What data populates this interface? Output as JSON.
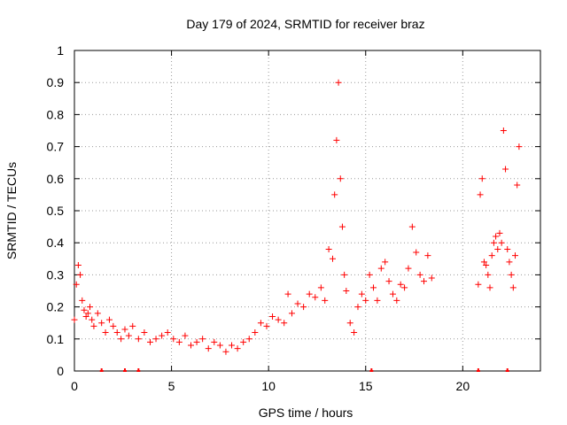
{
  "chart_data": {
    "type": "scatter",
    "title": "Day 179 of 2024, SRMTID for receiver braz",
    "xlabel": "GPS time / hours",
    "ylabel": "SRMTID / TECUs",
    "xlim": [
      0,
      24
    ],
    "ylim": [
      0,
      1
    ],
    "xticks": [
      0,
      5,
      10,
      15,
      20
    ],
    "xtick_labels": [
      "0",
      "5",
      "10",
      "15",
      "20"
    ],
    "yticks": [
      0,
      0.1,
      0.2,
      0.3,
      0.4,
      0.5,
      0.6,
      0.7,
      0.8,
      0.9,
      1
    ],
    "ytick_labels": [
      "0",
      "0.1",
      "0.2",
      "0.3",
      "0.4",
      "0.5",
      "0.6",
      "0.7",
      "0.8",
      "0.9",
      "1"
    ],
    "grid": true,
    "marker": "+",
    "color": "#ff0000",
    "series": [
      {
        "name": "SRMTID",
        "x": [
          0.0,
          0.1,
          0.2,
          0.3,
          0.4,
          0.5,
          0.6,
          0.7,
          0.8,
          0.9,
          1.0,
          1.2,
          1.4,
          1.6,
          1.8,
          2.0,
          2.2,
          2.4,
          2.6,
          2.8,
          3.0,
          3.3,
          3.6,
          3.9,
          4.2,
          4.5,
          4.8,
          5.1,
          5.4,
          5.7,
          6.0,
          6.3,
          6.6,
          6.9,
          7.2,
          7.5,
          7.8,
          8.1,
          8.4,
          8.7,
          9.0,
          9.3,
          9.6,
          9.9,
          10.2,
          10.5,
          10.8,
          11.0,
          11.2,
          11.5,
          11.8,
          12.1,
          12.4,
          12.7,
          12.9,
          13.1,
          13.3,
          13.4,
          13.5,
          13.6,
          13.7,
          13.8,
          13.9,
          14.0,
          14.2,
          14.4,
          14.6,
          14.8,
          15.0,
          15.2,
          15.4,
          15.6,
          15.8,
          16.0,
          16.2,
          16.4,
          16.6,
          16.8,
          17.0,
          17.2,
          17.4,
          17.6,
          17.8,
          18.0,
          18.2,
          18.4,
          20.8,
          20.9,
          21.0,
          21.1,
          21.2,
          21.3,
          21.4,
          21.5,
          21.6,
          21.7,
          21.8,
          21.9,
          22.0,
          22.1,
          22.2,
          22.3,
          22.4,
          22.5,
          22.6,
          22.7,
          22.8,
          22.9
        ],
        "y": [
          0.16,
          0.27,
          0.33,
          0.3,
          0.22,
          0.19,
          0.17,
          0.18,
          0.2,
          0.16,
          0.14,
          0.18,
          0.15,
          0.12,
          0.16,
          0.14,
          0.12,
          0.1,
          0.13,
          0.11,
          0.14,
          0.1,
          0.12,
          0.09,
          0.1,
          0.11,
          0.12,
          0.1,
          0.09,
          0.11,
          0.08,
          0.09,
          0.1,
          0.07,
          0.09,
          0.08,
          0.06,
          0.08,
          0.07,
          0.09,
          0.1,
          0.12,
          0.15,
          0.14,
          0.17,
          0.16,
          0.15,
          0.24,
          0.18,
          0.21,
          0.2,
          0.24,
          0.23,
          0.26,
          0.22,
          0.38,
          0.35,
          0.55,
          0.72,
          0.9,
          0.6,
          0.45,
          0.3,
          0.25,
          0.15,
          0.12,
          0.2,
          0.24,
          0.22,
          0.3,
          0.26,
          0.22,
          0.32,
          0.34,
          0.28,
          0.24,
          0.22,
          0.27,
          0.26,
          0.32,
          0.45,
          0.37,
          0.3,
          0.28,
          0.36,
          0.29,
          0.27,
          0.55,
          0.6,
          0.34,
          0.33,
          0.3,
          0.26,
          0.36,
          0.4,
          0.42,
          0.38,
          0.43,
          0.4,
          0.75,
          0.63,
          0.38,
          0.34,
          0.3,
          0.26,
          0.36,
          0.58,
          0.7
        ]
      }
    ],
    "gap_markers_x": [
      1.4,
      2.6,
      3.3,
      15.3,
      20.8,
      22.3
    ]
  }
}
